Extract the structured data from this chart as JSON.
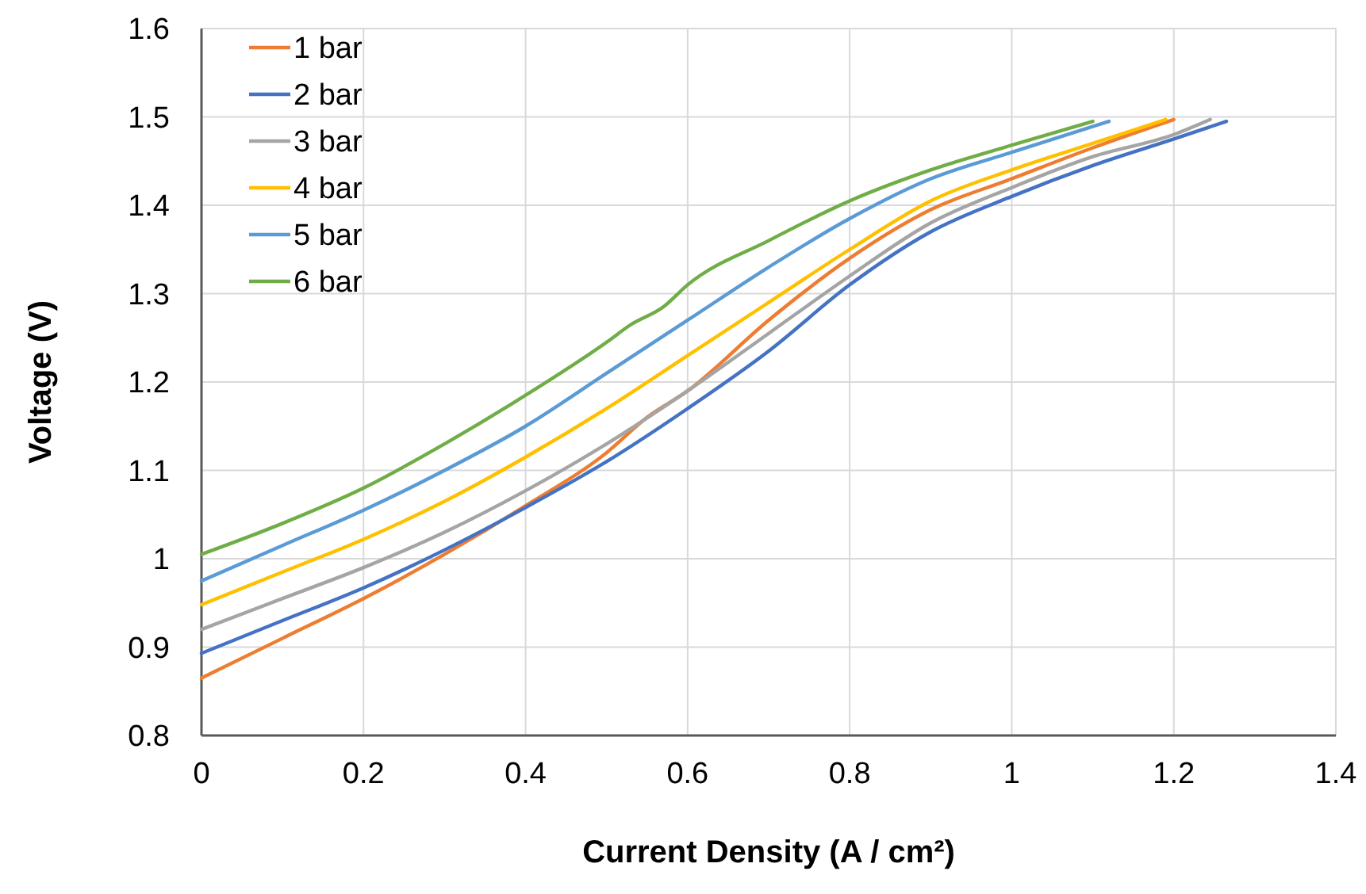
{
  "chart_data": {
    "type": "line",
    "xlabel": "Current Density (A / cm²)",
    "ylabel": "Voltage (V)",
    "xlim": [
      0,
      1.4
    ],
    "xticks": [
      0,
      0.2,
      0.4,
      0.6,
      0.8,
      1,
      1.2,
      1.4
    ],
    "ylim": [
      0.8,
      1.6
    ],
    "yticks": [
      0.8,
      0.9,
      1,
      1.1,
      1.2,
      1.3,
      1.4,
      1.5,
      1.6
    ],
    "grid": true,
    "legend": "top left",
    "line_style": "solid",
    "series": [
      {
        "name": "1 bar",
        "color": "#ed7d31",
        "x": [
          0,
          0.1,
          0.2,
          0.3,
          0.4,
          0.5,
          0.55,
          0.6,
          0.7,
          0.8,
          0.9,
          1,
          1.1,
          1.2
        ],
        "values": [
          0.865,
          0.91,
          0.955,
          1.005,
          1.06,
          1.12,
          1.16,
          1.19,
          1.27,
          1.34,
          1.395,
          1.43,
          1.465,
          1.497
        ]
      },
      {
        "name": "2 bar",
        "color": "#4472c4",
        "x": [
          0,
          0.1,
          0.2,
          0.3,
          0.4,
          0.5,
          0.6,
          0.7,
          0.8,
          0.9,
          1,
          1.1,
          1.2,
          1.265
        ],
        "values": [
          0.893,
          0.93,
          0.967,
          1.01,
          1.058,
          1.11,
          1.17,
          1.235,
          1.31,
          1.37,
          1.41,
          1.445,
          1.475,
          1.495
        ]
      },
      {
        "name": "3 bar",
        "color": "#a5a5a5",
        "x": [
          0,
          0.1,
          0.2,
          0.3,
          0.4,
          0.5,
          0.6,
          0.7,
          0.8,
          0.9,
          1,
          1.1,
          1.2,
          1.245
        ],
        "values": [
          0.92,
          0.955,
          0.99,
          1.03,
          1.077,
          1.13,
          1.19,
          1.255,
          1.32,
          1.38,
          1.42,
          1.455,
          1.48,
          1.497
        ]
      },
      {
        "name": "4 bar",
        "color": "#ffc000",
        "x": [
          0,
          0.1,
          0.2,
          0.3,
          0.4,
          0.5,
          0.6,
          0.7,
          0.8,
          0.9,
          1,
          1.1,
          1.19
        ],
        "values": [
          0.948,
          0.985,
          1.022,
          1.065,
          1.115,
          1.17,
          1.23,
          1.29,
          1.35,
          1.405,
          1.44,
          1.47,
          1.497
        ]
      },
      {
        "name": "5 bar",
        "color": "#5b9bd5",
        "x": [
          0,
          0.1,
          0.2,
          0.3,
          0.4,
          0.5,
          0.6,
          0.7,
          0.8,
          0.9,
          1,
          1.12
        ],
        "values": [
          0.975,
          1.015,
          1.055,
          1.1,
          1.15,
          1.21,
          1.27,
          1.33,
          1.385,
          1.43,
          1.46,
          1.495
        ]
      },
      {
        "name": "6 bar",
        "color": "#70ad47",
        "x": [
          0,
          0.1,
          0.2,
          0.3,
          0.4,
          0.5,
          0.53,
          0.57,
          0.6,
          0.7,
          0.8,
          0.9,
          1,
          1.1
        ],
        "values": [
          1.005,
          1.04,
          1.08,
          1.13,
          1.185,
          1.245,
          1.265,
          1.285,
          1.31,
          1.36,
          1.405,
          1.44,
          1.468,
          1.495
        ]
      }
    ]
  }
}
